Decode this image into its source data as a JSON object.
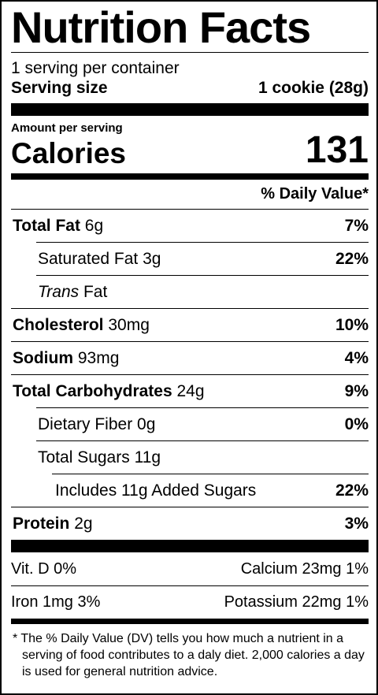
{
  "title": "Nutrition Facts",
  "servings": "1 serving per container",
  "serving_size": {
    "label": "Serving size",
    "value": "1 cookie (28g)"
  },
  "amount_per_serving": "Amount per serving",
  "calories": {
    "label": "Calories",
    "value": "131"
  },
  "daily_value_header": "% Daily Value*",
  "rows": [
    {
      "name": "Total Fat",
      "amount": "6g",
      "dv": "7%",
      "bold": true,
      "indent": 0
    },
    {
      "name": "Saturated Fat",
      "amount": "3g",
      "dv": "22%",
      "bold": false,
      "indent": 1
    },
    {
      "name_italic": "Trans",
      "name": "Fat",
      "bold": false,
      "indent": 1
    },
    {
      "name": "Cholesterol",
      "amount": "30mg",
      "dv": "10%",
      "bold": true,
      "indent": 0
    },
    {
      "name": "Sodium",
      "amount": "93mg",
      "dv": "4%",
      "bold": true,
      "indent": 0
    },
    {
      "name": "Total Carbohydrates",
      "amount": "24g",
      "dv": "9%",
      "bold": true,
      "indent": 0
    },
    {
      "name": "Dietary Fiber",
      "amount": "0g",
      "dv": "0%",
      "bold": false,
      "indent": 1
    },
    {
      "name": "Total Sugars",
      "amount": "11g",
      "bold": false,
      "indent": 1
    },
    {
      "name": "Includes 11g Added Sugars",
      "dv": "22%",
      "bold": false,
      "indent": 2
    },
    {
      "name": "Protein",
      "amount": "2g",
      "dv": "3%",
      "bold": true,
      "indent": 0
    }
  ],
  "vitamins": [
    [
      "Vit. D 0%",
      "Calcium 23mg 1%"
    ],
    [
      "Iron 1mg 3%",
      "Potassium 22mg 1%"
    ]
  ],
  "footnote": "* The % Daily Value (DV) tells you how much a nutrient in a serving of food contributes to a daly diet. 2,000 calories a day is used for general nutrition advice."
}
